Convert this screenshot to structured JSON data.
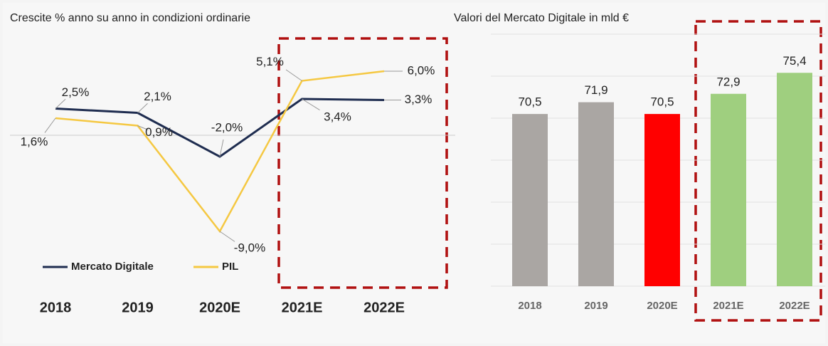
{
  "chart_data": [
    {
      "type": "line",
      "title": "Crescite % anno su anno in condizioni ordinarie",
      "categories": [
        "2018",
        "2019",
        "2020E",
        "2021E",
        "2022E"
      ],
      "series": [
        {
          "name": "Mercato Digitale",
          "color": "#1f2d50",
          "values": [
            2.5,
            2.1,
            -2.0,
            3.4,
            3.3
          ],
          "value_labels": [
            "2,5%",
            "2,1%",
            "-2,0%",
            "3,4%",
            "3,3%"
          ]
        },
        {
          "name": "PIL",
          "color": "#f5c842",
          "values": [
            1.6,
            0.9,
            -9.0,
            5.1,
            6.0
          ],
          "value_labels": [
            "1,6%",
            "0,9%",
            "-9,0%",
            "5,1%",
            "6,0%"
          ]
        }
      ]
    },
    {
      "type": "bar",
      "title": "Valori del Mercato Digitale in mld €",
      "categories": [
        "2018",
        "2019",
        "2020E",
        "2021E",
        "2022E"
      ],
      "values": [
        70.5,
        71.9,
        70.5,
        72.9,
        75.4
      ],
      "value_labels": [
        "70,5",
        "71,9",
        "70,5",
        "72,9",
        "75,4"
      ],
      "colors": [
        "#aaa6a3",
        "#aaa6a3",
        "#ff0000",
        "#9fcf7f",
        "#9fcf7f"
      ],
      "ylim": [
        50,
        80
      ],
      "yticks": [
        50,
        55,
        60,
        65,
        70,
        75,
        80
      ],
      "grid": true
    }
  ]
}
